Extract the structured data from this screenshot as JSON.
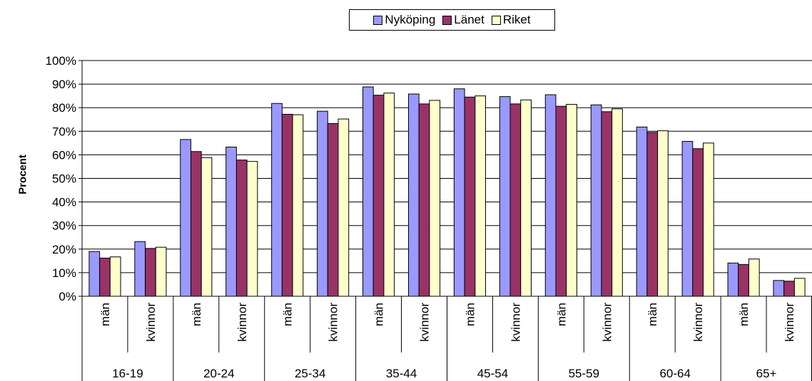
{
  "chart_data": {
    "type": "bar",
    "ylabel": "Procent",
    "xlabel": "",
    "ylim": [
      0,
      100
    ],
    "yticks": [
      "0%",
      "10%",
      "20%",
      "30%",
      "40%",
      "50%",
      "60%",
      "70%",
      "80%",
      "90%",
      "100%"
    ],
    "grid": true,
    "legend_position": "top-center",
    "groups": [
      "16-19",
      "20-24",
      "25-34",
      "35-44",
      "45-54",
      "55-59",
      "60-64",
      "65+"
    ],
    "subcategories": [
      "män",
      "kvinnor"
    ],
    "series": [
      {
        "name": "Nyköping",
        "color": "#9999ff",
        "values": [
          19,
          23.2,
          66.5,
          63.3,
          81.8,
          78.5,
          88.8,
          85.8,
          88,
          84.7,
          85.5,
          81.2,
          71.8,
          65.7,
          14.1,
          6.7
        ]
      },
      {
        "name": "Länet",
        "color": "#993366",
        "values": [
          16.2,
          20.3,
          61.4,
          57.8,
          77.2,
          73.3,
          85.3,
          81.6,
          84.5,
          81.6,
          80.6,
          78.3,
          69.5,
          62.6,
          13.5,
          6.4
        ]
      },
      {
        "name": "Riket",
        "color": "#ffffcc",
        "values": [
          16.7,
          20.8,
          58.8,
          57.2,
          77.0,
          75.2,
          86.2,
          83.1,
          85.0,
          83.3,
          81.4,
          79.5,
          70.2,
          65.0,
          15.8,
          7.6
        ]
      }
    ]
  }
}
